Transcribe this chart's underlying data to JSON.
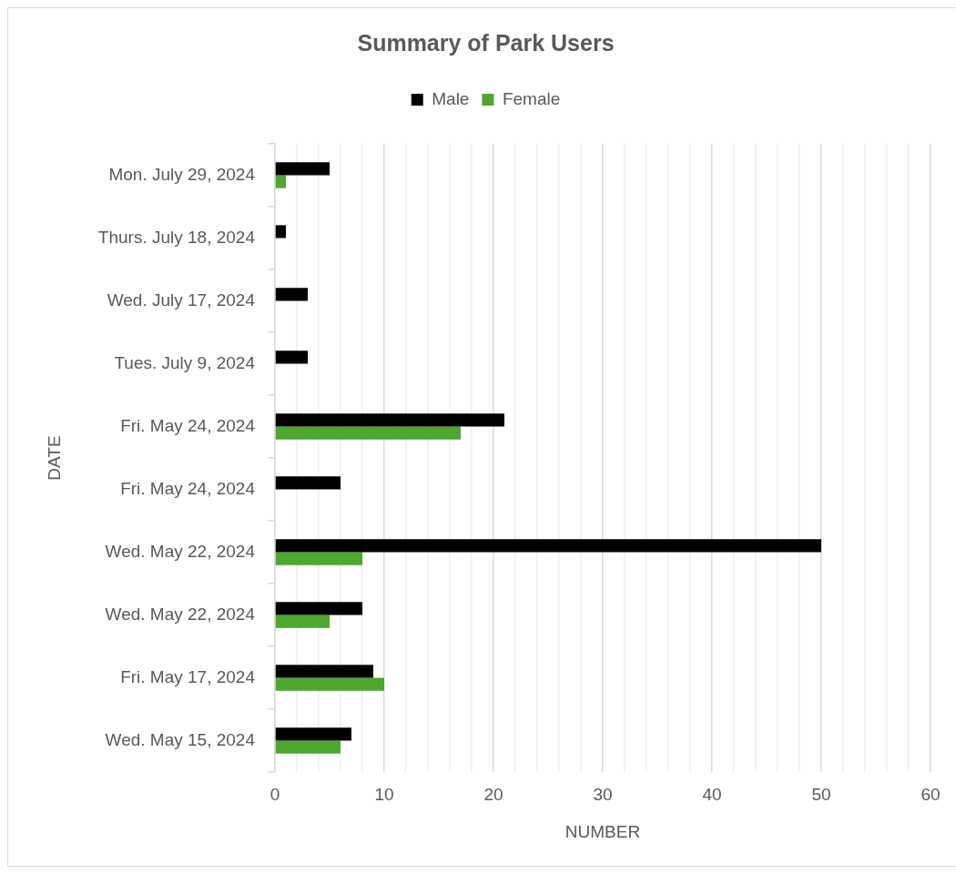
{
  "chart_data": {
    "type": "bar",
    "orientation": "horizontal",
    "title": "Summary of Park Users",
    "xlabel": "NUMBER",
    "ylabel": "DATE",
    "categories": [
      "Mon. July 29, 2024",
      "Thurs. July 18, 2024",
      "Wed. July 17, 2024",
      "Tues. July 9, 2024",
      "Fri. May 24, 2024",
      "Fri. May 24, 2024",
      "Wed. May 22, 2024",
      "Wed. May 22, 2024",
      "Fri. May 17, 2024",
      "Wed. May 15, 2024"
    ],
    "series": [
      {
        "name": "Male",
        "color": "#000000",
        "values": [
          5,
          1,
          3,
          3,
          21,
          6,
          50,
          8,
          9,
          7
        ]
      },
      {
        "name": "Female",
        "color": "#4ea72e",
        "values": [
          1,
          null,
          null,
          null,
          17,
          null,
          8,
          5,
          10,
          6
        ]
      }
    ],
    "xlim": [
      0,
      60
    ],
    "xticks": [
      0,
      {
        "value": 2,
        "label": null
      },
      {
        "value": 4,
        "label": null
      },
      {
        "value": 6,
        "label": null
      },
      {
        "value": 8,
        "label": null
      },
      10,
      {
        "value": 12,
        "label": null
      },
      {
        "value": 14,
        "label": null
      },
      {
        "value": 16,
        "label": null
      },
      {
        "value": 18,
        "label": null
      },
      20,
      {
        "value": 22,
        "label": null
      },
      {
        "value": 24,
        "label": null
      },
      {
        "value": 26,
        "label": null
      },
      {
        "value": 28,
        "label": null
      },
      30,
      {
        "value": 32,
        "label": null
      },
      {
        "value": 34,
        "label": null
      },
      {
        "value": 36,
        "label": null
      },
      {
        "value": 38,
        "label": null
      },
      40,
      {
        "value": 42,
        "label": null
      },
      {
        "value": 44,
        "label": null
      },
      {
        "value": 46,
        "label": null
      },
      {
        "value": 48,
        "label": null
      },
      50,
      {
        "value": 52,
        "label": null
      },
      {
        "value": 54,
        "label": null
      },
      {
        "value": 56,
        "label": null
      },
      {
        "value": 58,
        "label": null
      },
      60
    ],
    "grid": "x",
    "legend": "top"
  }
}
